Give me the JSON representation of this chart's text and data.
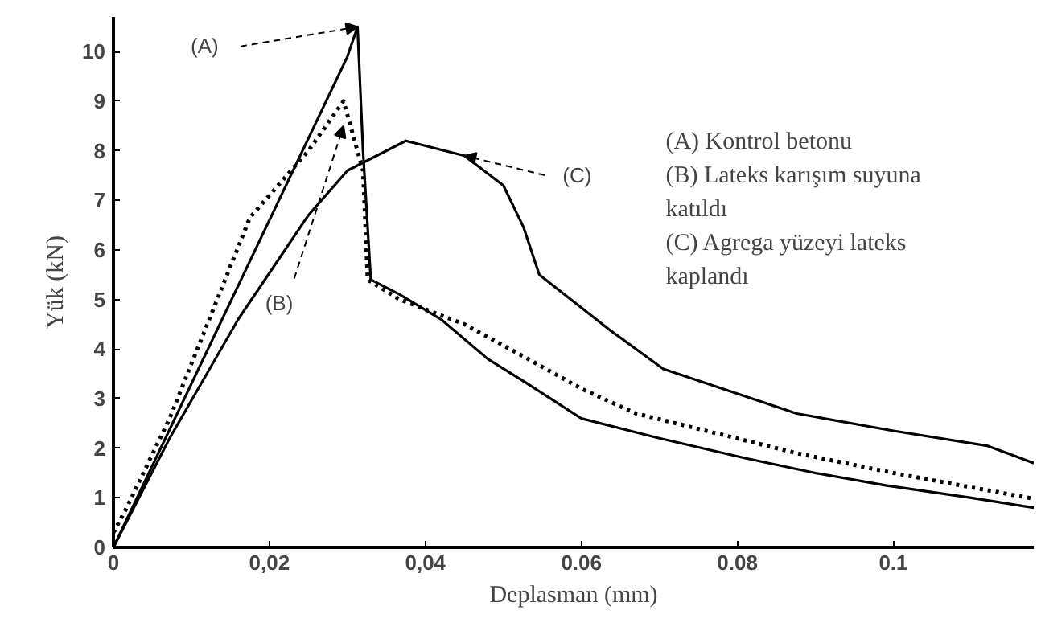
{
  "chart_data": {
    "type": "line",
    "xlabel": "Deplasman (mm)",
    "ylabel": "Yük (kN)",
    "xlim": [
      0,
      0.118
    ],
    "ylim": [
      0,
      10.7
    ],
    "xticks": [
      0,
      {
        "value": 0.02,
        "label": "0,02"
      },
      {
        "value": 0.04,
        "label": "0,04"
      },
      {
        "value": 0.06,
        "label": "0.06"
      },
      {
        "value": 0.08,
        "label": "0.08"
      },
      {
        "value": 0.1,
        "label": "0.1"
      }
    ],
    "yticks": [
      0,
      1,
      2,
      3,
      4,
      5,
      6,
      7,
      8,
      9,
      10
    ],
    "grid": false,
    "marker": "none",
    "series": [
      {
        "color": "#000000",
        "line_style": "solid",
        "x": [
          0,
          0.01,
          0.02,
          0.03,
          0.0313,
          0.032,
          0.033,
          0.0367,
          0.042,
          0.048,
          0.0526,
          0.06,
          0.07,
          0.081,
          0.09,
          0.099,
          0.11,
          0.118
        ],
        "values": [
          0,
          3.3,
          6.6,
          9.9,
          10.5,
          8.0,
          5.4,
          5.1,
          4.6,
          3.8,
          3.35,
          2.6,
          2.2,
          1.8,
          1.5,
          1.25,
          1.0,
          0.8
        ]
      },
      {
        "color": "#000000",
        "line_style": "dotted",
        "x": [
          0,
          0.0017,
          0.0072,
          0.0175,
          0.025,
          0.0295,
          0.032,
          0.0326,
          0.0367,
          0.045,
          0.0526,
          0.06,
          0.067,
          0.0876,
          0.1,
          0.118
        ],
        "values": [
          0.3,
          0.8,
          2.6,
          6.65,
          8.0,
          9.0,
          7.6,
          5.4,
          5.0,
          4.5,
          3.85,
          3.2,
          2.7,
          1.9,
          1.5,
          0.98
        ]
      },
      {
        "color": "#000000",
        "line_style": "solid",
        "x": [
          0,
          0.0072,
          0.016,
          0.025,
          0.03,
          0.0375,
          0.045,
          0.05,
          0.0526,
          0.0546,
          0.0635,
          0.0705,
          0.0876,
          0.1,
          0.112,
          0.118
        ],
        "values": [
          0,
          2.2,
          4.6,
          6.7,
          7.6,
          8.2,
          7.9,
          7.3,
          6.45,
          5.5,
          4.4,
          3.6,
          2.7,
          2.35,
          2.05,
          1.7
        ]
      }
    ],
    "annotations": [
      {
        "text": "(A)",
        "x": 0.0313,
        "y": 10.5
      },
      {
        "text": "(B)",
        "x": 0.0295,
        "y": 8.5
      },
      {
        "text": "(C)",
        "x": 0.045,
        "y": 7.9
      },
      "(A) Kontrol betonu",
      "(B) Lateks karışım suyuna katıldı",
      "(C) Agrega yüzeyi lateks kaplandı"
    ]
  }
}
